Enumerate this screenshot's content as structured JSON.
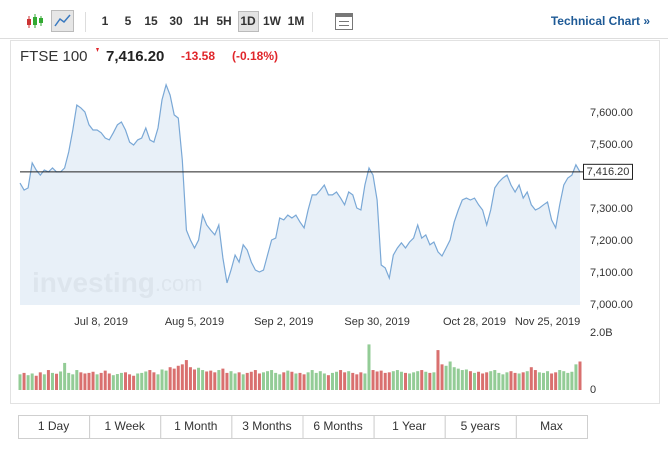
{
  "toolbar": {
    "intervals": [
      "1",
      "5",
      "15",
      "30",
      "1H",
      "5H",
      "1D",
      "1W",
      "1M"
    ],
    "technical_chart": "Technical Chart »"
  },
  "chart_data": {
    "type": "line",
    "title": "FTSE 100",
    "price": {
      "value": 7416.2,
      "label": "7,416.20"
    },
    "change": -13.58,
    "change_percent": {
      "value": -0.18,
      "label": "(-0.18%)"
    },
    "color": "#7aa8d6",
    "area_color": "#e4edf7",
    "values": [
      7381,
      7359,
      7366,
      7444,
      7422,
      7406,
      7422,
      7416,
      7428,
      7416,
      7416,
      7428,
      7478,
      7547,
      7625,
      7616,
      7603,
      7563,
      7547,
      7547,
      7538,
      7522,
      7516,
      7538,
      7563,
      7572,
      7547,
      7509,
      7500,
      7516,
      7522,
      7553,
      7516,
      7509,
      7553,
      7641,
      7688,
      7656,
      7594,
      7584,
      7453,
      7234,
      7203,
      7178,
      7203,
      7281,
      7250,
      7234,
      7219,
      7250,
      7147,
      7069,
      7109,
      7156,
      7134,
      7188,
      7172,
      7134,
      7109,
      7103,
      7109,
      7156,
      7203,
      7209,
      7272,
      7266,
      7281,
      7272,
      7281,
      7259,
      7241,
      7297,
      7344,
      7344,
      7359,
      7375,
      7344,
      7344,
      7353,
      7334,
      7313,
      7353,
      7344,
      7303,
      7297,
      7375,
      7428,
      7406,
      7328,
      7125,
      7116,
      7084,
      7156,
      7178,
      7194,
      7178,
      7197,
      7209,
      7250,
      7209,
      7219,
      7188,
      7197,
      7166,
      7153,
      7178,
      7203,
      7259,
      7297,
      7328,
      7334,
      7328,
      7334,
      7313,
      7297,
      7250,
      7297,
      7366,
      7384,
      7397,
      7406,
      7375,
      7353,
      7375,
      7334,
      7353,
      7313,
      7297,
      7303,
      7313,
      7322,
      7266,
      7241,
      7313,
      7375,
      7397,
      7406,
      7438,
      7416
    ],
    "xlim": [
      0,
      138
    ],
    "xticks": [
      {
        "value": 20,
        "label": "Jul 8, 2019"
      },
      {
        "value": 43,
        "label": "Aug 5, 2019"
      },
      {
        "value": 65,
        "label": "Sep 2, 2019"
      },
      {
        "value": 88,
        "label": "Sep 30, 2019"
      },
      {
        "value": 112,
        "label": "Oct 28, 2019"
      },
      {
        "value": 130,
        "label": "Nov 25, 2019"
      }
    ],
    "ylim": [
      7000,
      7700
    ],
    "yticks": [
      {
        "value": 7000,
        "label": "7,000.00"
      },
      {
        "value": 7100,
        "label": "7,100.00"
      },
      {
        "value": 7200,
        "label": "7,200.00"
      },
      {
        "value": 7300,
        "label": "7,300.00"
      },
      {
        "value": 7500,
        "label": "7,500.00"
      },
      {
        "value": 7600,
        "label": "7,600.00"
      }
    ],
    "watermark": {
      "brand": "investing",
      "domain": ".com"
    },
    "volume": {
      "up_color": "#93cc96",
      "down_color": "#d9706f",
      "ylim": [
        0,
        2
      ],
      "yticks": [
        0,
        {
          "value": 2,
          "label": "2.0B"
        }
      ],
      "values": [
        0.55,
        0.6,
        0.52,
        0.58,
        0.5,
        0.62,
        0.55,
        0.7,
        0.6,
        0.57,
        0.65,
        0.95,
        0.6,
        0.55,
        0.7,
        0.62,
        0.58,
        0.6,
        0.64,
        0.55,
        0.6,
        0.68,
        0.58,
        0.52,
        0.56,
        0.6,
        0.62,
        0.55,
        0.5,
        0.58,
        0.6,
        0.65,
        0.7,
        0.62,
        0.55,
        0.72,
        0.68,
        0.8,
        0.75,
        0.85,
        0.9,
        1.05,
        0.8,
        0.72,
        0.78,
        0.7,
        0.65,
        0.68,
        0.62,
        0.7,
        0.75,
        0.6,
        0.66,
        0.58,
        0.62,
        0.55,
        0.6,
        0.64,
        0.7,
        0.58,
        0.62,
        0.66,
        0.7,
        0.6,
        0.55,
        0.62,
        0.68,
        0.64,
        0.58,
        0.6,
        0.55,
        0.62,
        0.7,
        0.6,
        0.66,
        0.58,
        0.52,
        0.6,
        0.64,
        0.7,
        0.62,
        0.66,
        0.6,
        0.55,
        0.62,
        0.58,
        1.6,
        0.7,
        0.65,
        0.68,
        0.6,
        0.62,
        0.66,
        0.7,
        0.64,
        0.6,
        0.58,
        0.62,
        0.66,
        0.7,
        0.64,
        0.6,
        0.62,
        1.4,
        0.9,
        0.85,
        1.0,
        0.8,
        0.75,
        0.7,
        0.72,
        0.66,
        0.6,
        0.64,
        0.58,
        0.62,
        0.66,
        0.7,
        0.6,
        0.55,
        0.62,
        0.66,
        0.6,
        0.58,
        0.62,
        0.66,
        0.8,
        0.7,
        0.62,
        0.6,
        0.66,
        0.58,
        0.62,
        0.7,
        0.66,
        0.6,
        0.64,
        0.9,
        1.0
      ]
    }
  },
  "ranges": [
    "1 Day",
    "1 Week",
    "1 Month",
    "3 Months",
    "6 Months",
    "1 Year",
    "5 years",
    "Max"
  ]
}
